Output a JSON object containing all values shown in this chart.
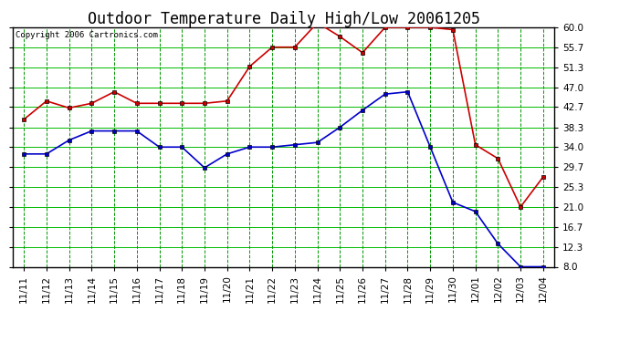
{
  "title": "Outdoor Temperature Daily High/Low 20061205",
  "copyright": "Copyright 2006 Cartronics.com",
  "dates": [
    "11/11",
    "11/12",
    "11/13",
    "11/14",
    "11/15",
    "11/16",
    "11/17",
    "11/18",
    "11/19",
    "11/20",
    "11/21",
    "11/22",
    "11/23",
    "11/24",
    "11/25",
    "11/26",
    "11/27",
    "11/28",
    "11/29",
    "11/30",
    "12/01",
    "12/02",
    "12/03",
    "12/04"
  ],
  "high": [
    40.0,
    44.0,
    42.5,
    43.5,
    46.0,
    43.5,
    43.5,
    43.5,
    43.5,
    44.0,
    51.5,
    55.7,
    55.7,
    61.0,
    58.0,
    54.5,
    60.0,
    60.0,
    60.0,
    59.5,
    34.5,
    31.5,
    21.0,
    27.5
  ],
  "low": [
    32.5,
    32.5,
    35.5,
    37.5,
    37.5,
    37.5,
    34.0,
    34.0,
    29.5,
    32.5,
    34.0,
    34.0,
    34.5,
    35.0,
    38.3,
    42.0,
    45.5,
    46.0,
    34.0,
    22.0,
    20.0,
    13.0,
    8.0,
    8.0
  ],
  "high_color": "#cc0000",
  "low_color": "#0000cc",
  "bg_color": "#ffffff",
  "plot_bg_color": "#ffffff",
  "grid_h_color": "#00bb00",
  "grid_v_color": "#009900",
  "ymin": 8.0,
  "ymax": 60.0,
  "yticks": [
    8.0,
    12.3,
    16.7,
    21.0,
    25.3,
    29.7,
    34.0,
    38.3,
    42.7,
    47.0,
    51.3,
    55.7,
    60.0
  ],
  "marker": "s",
  "marker_size": 3,
  "linewidth": 1.2,
  "title_fontsize": 12,
  "tick_fontsize": 7.5,
  "copyright_fontsize": 6.5
}
